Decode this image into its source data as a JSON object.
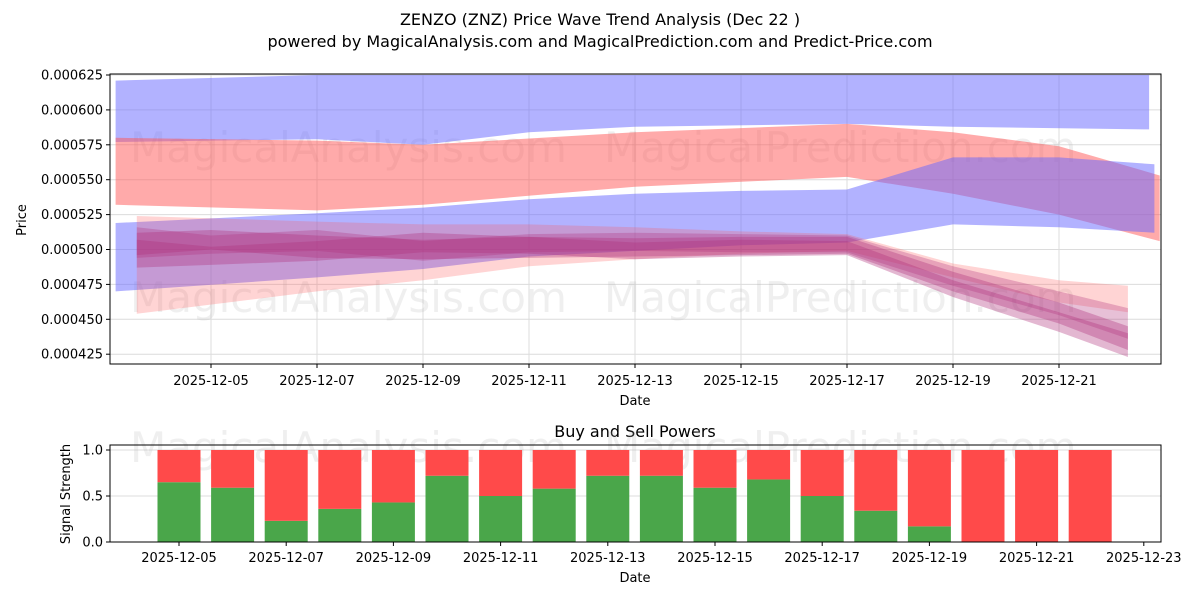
{
  "header": {
    "title": "ZENZO (ZNZ) Price Wave Trend Analysis (Dec 22 )",
    "subtitle": "powered by MagicalAnalysis.com and MagicalPrediction.com and Predict-Price.com"
  },
  "watermarks": [
    "MagicalAnalysis.com",
    "MagicalPrediction.com"
  ],
  "colors": {
    "blue_band": "#6666ff",
    "red_band": "#ff5555",
    "buy_green": "#4aa64a",
    "sell_red": "#ff4a4a",
    "grid": "#dcdcdc"
  },
  "chart_data": [
    {
      "type": "area",
      "title": "ZENZO (ZNZ) Price Wave Trend Analysis (Dec 22 )",
      "xlabel": "Date",
      "ylabel": "Price",
      "ylim": [
        0.000418,
        0.000625
      ],
      "x_ticks": [
        "2025-12-05",
        "2025-12-07",
        "2025-12-09",
        "2025-12-11",
        "2025-12-13",
        "2025-12-15",
        "2025-12-17",
        "2025-12-19",
        "2025-12-21"
      ],
      "y_ticks": [
        "0.000425",
        "0.000450",
        "0.000475",
        "0.000500",
        "0.000525",
        "0.000550",
        "0.000575",
        "0.000600",
        "0.000625"
      ],
      "grid": true,
      "series": [
        {
          "name": "blue-upper-band",
          "color": "blue",
          "opacity": 0.5,
          "x": [
            3.2,
            7,
            9,
            11,
            13,
            17,
            19,
            22.7
          ],
          "upper": [
            0.000621,
            0.000625,
            0.000625,
            0.000625,
            0.000625,
            0.000625,
            0.000625,
            0.000625
          ],
          "lower": [
            0.000577,
            0.000579,
            0.000575,
            0.000584,
            0.000588,
            0.00059,
            0.000588,
            0.000586
          ]
        },
        {
          "name": "red-upper-band",
          "color": "red",
          "opacity": 0.5,
          "x": [
            3.2,
            7,
            9,
            13,
            17,
            19,
            21,
            22.9
          ],
          "upper": [
            0.00058,
            0.000578,
            0.000575,
            0.000584,
            0.00059,
            0.000584,
            0.000574,
            0.000553
          ],
          "lower": [
            0.000532,
            0.000528,
            0.000532,
            0.000545,
            0.000552,
            0.00054,
            0.000525,
            0.000506
          ]
        },
        {
          "name": "blue-mid-band",
          "color": "blue",
          "opacity": 0.5,
          "x": [
            3.2,
            7,
            9,
            11,
            13,
            15,
            17,
            19,
            21,
            22.8
          ],
          "upper": [
            0.000519,
            0.000526,
            0.00053,
            0.000536,
            0.00054,
            0.000542,
            0.000543,
            0.000566,
            0.000566,
            0.000561
          ],
          "lower": [
            0.00047,
            0.00048,
            0.000486,
            0.000495,
            0.000499,
            0.000503,
            0.000505,
            0.000518,
            0.000516,
            0.000512
          ]
        },
        {
          "name": "red-lower-band-1",
          "color": "red",
          "opacity": 0.25,
          "x": [
            3.6,
            7,
            9,
            11,
            13,
            15,
            17,
            19,
            21,
            22.3
          ],
          "upper": [
            0.000524,
            0.00052,
            0.000518,
            0.000518,
            0.000516,
            0.000513,
            0.000511,
            0.00049,
            0.000478,
            0.000474
          ],
          "lower": [
            0.000454,
            0.00047,
            0.000478,
            0.000488,
            0.000493,
            0.000497,
            0.000499,
            0.00048,
            0.000462,
            0.000455
          ]
        },
        {
          "name": "magenta-band-2",
          "color": "purple",
          "opacity": 0.35,
          "x": [
            3.6,
            5,
            7,
            9,
            11,
            13,
            15,
            17,
            19,
            21,
            22.3
          ],
          "upper": [
            0.000512,
            0.000514,
            0.00051,
            0.000507,
            0.000509,
            0.000508,
            0.000509,
            0.000509,
            0.000484,
            0.000462,
            0.000445
          ],
          "lower": [
            0.000496,
            0.0005,
            0.000494,
            0.000493,
            0.000494,
            0.000495,
            0.000496,
            0.000497,
            0.00047,
            0.000447,
            0.000428
          ]
        },
        {
          "name": "magenta-band-3",
          "color": "purple",
          "opacity": 0.35,
          "x": [
            3.6,
            5,
            7,
            9,
            11,
            13,
            15,
            17,
            19,
            21,
            22.3
          ],
          "upper": [
            0.000507,
            0.000502,
            0.000506,
            0.000512,
            0.000509,
            0.000505,
            0.000507,
            0.000506,
            0.000478,
            0.000455,
            0.00044
          ],
          "lower": [
            0.000487,
            0.000489,
            0.000492,
            0.000498,
            0.000497,
            0.000493,
            0.000495,
            0.000496,
            0.000466,
            0.000441,
            0.000423
          ]
        },
        {
          "name": "magenta-band-4",
          "color": "purple",
          "opacity": 0.3,
          "x": [
            3.6,
            5,
            7,
            9,
            11,
            13,
            15,
            17,
            19,
            21,
            22.3
          ],
          "upper": [
            0.000516,
            0.00051,
            0.000514,
            0.000506,
            0.000511,
            0.000512,
            0.000511,
            0.00051,
            0.000488,
            0.00047,
            0.000458
          ],
          "lower": [
            0.000494,
            0.000497,
            0.000499,
            0.000492,
            0.000498,
            0.000499,
            0.000498,
            0.000498,
            0.000474,
            0.000453,
            0.000436
          ]
        }
      ]
    },
    {
      "type": "bar",
      "title": "Buy and Sell Powers",
      "xlabel": "Date",
      "ylabel": "Signal Strength",
      "ylim": [
        0,
        1.05
      ],
      "y_ticks": [
        "0.0",
        "0.5",
        "1.0"
      ],
      "x_ticks": [
        "2025-12-05",
        "2025-12-07",
        "2025-12-09",
        "2025-12-11",
        "2025-12-13",
        "2025-12-15",
        "2025-12-17",
        "2025-12-19",
        "2025-12-21",
        "2025-12-23"
      ],
      "categories": [
        "2025-12-05",
        "2025-12-06",
        "2025-12-07",
        "2025-12-08",
        "2025-12-09",
        "2025-12-10",
        "2025-12-11",
        "2025-12-12",
        "2025-12-13",
        "2025-12-14",
        "2025-12-15",
        "2025-12-16",
        "2025-12-17",
        "2025-12-18",
        "2025-12-19",
        "2025-12-20",
        "2025-12-21",
        "2025-12-22"
      ],
      "series": [
        {
          "name": "Buy",
          "color": "green",
          "values": [
            0.65,
            0.59,
            0.23,
            0.36,
            0.43,
            0.72,
            0.5,
            0.58,
            0.72,
            0.72,
            0.59,
            0.68,
            0.5,
            0.34,
            0.17,
            0.0,
            0.0,
            0.0
          ]
        },
        {
          "name": "Sell",
          "color": "red",
          "values": [
            0.35,
            0.41,
            0.77,
            0.64,
            0.57,
            0.28,
            0.5,
            0.42,
            0.28,
            0.28,
            0.41,
            0.32,
            0.5,
            0.66,
            0.83,
            1.0,
            1.0,
            1.0
          ]
        }
      ]
    }
  ]
}
